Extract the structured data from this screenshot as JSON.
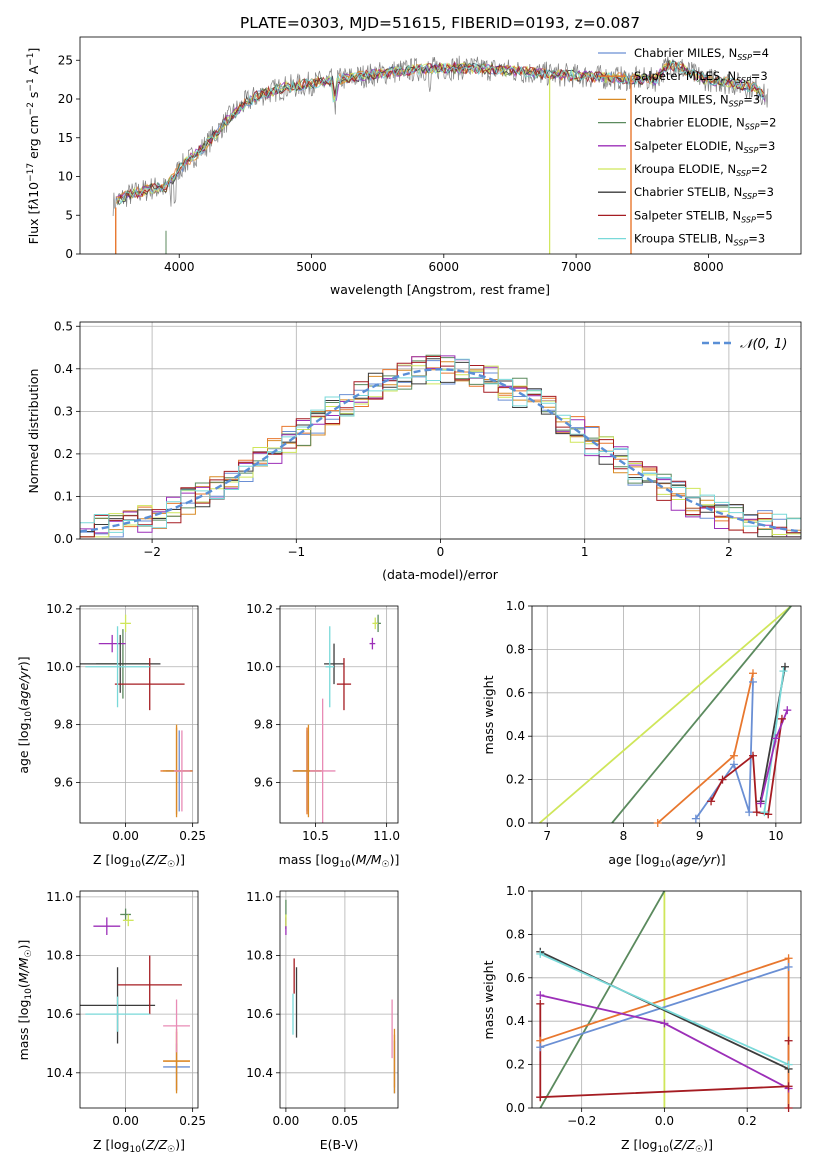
{
  "colors": {
    "chabrier_miles": "#6a8fd4",
    "salpeter_miles": "#e8772e",
    "kroupa_miles": "#d98a25",
    "chabrier_elodie": "#5b8a5e",
    "salpeter_elodie": "#9c2fb8",
    "kroupa_elodie": "#cfe65a",
    "chabrier_stelib": "#3c3c3c",
    "salpeter_stelib": "#a51c22",
    "kroupa_stelib": "#79d9d9",
    "pink": "#e88bb5",
    "grey_data": "#808080",
    "normal_curve": "#5a8fd6"
  },
  "chart_data": [
    {
      "id": "spectrum",
      "type": "line",
      "title": "PLATE=0303, MJD=51615, FIBERID=0193, z=0.087",
      "xlabel": "wavelength [Angstrom, rest frame]",
      "ylabel": "Flux [f_λ 10^-17 erg cm^-2 s^-1 A^-1]",
      "xlim": [
        3250,
        8700
      ],
      "ylim": [
        0,
        28
      ],
      "xticks": [
        "4000",
        "5000",
        "6000",
        "7000",
        "8000"
      ],
      "yticks": [
        "0",
        "5",
        "10",
        "15",
        "20",
        "25"
      ],
      "legend_position": "top-right",
      "legend": [
        "Chabrier MILES, N_SSP=4",
        "Salpeter MILES, N_SSP=3",
        "Kroupa MILES, N_SSP=3",
        "Chabrier ELODIE, N_SSP=2",
        "Salpeter ELODIE, N_SSP=3",
        "Kroupa ELODIE, N_SSP=2",
        "Chabrier STELIB, N_SSP=3",
        "Salpeter STELIB, N_SSP=5",
        "Kroupa STELIB, N_SSP=3"
      ],
      "continuum": {
        "x": [
          3500,
          3600,
          3700,
          3800,
          3900,
          4000,
          4100,
          4200,
          4300,
          4400,
          4500,
          4600,
          4800,
          5000,
          5200,
          5400,
          5600,
          5800,
          6000,
          6200,
          6400,
          6600,
          6800,
          7000,
          7200,
          7400,
          7600,
          7700,
          7800,
          7900,
          8000,
          8200,
          8350,
          8450
        ],
        "y": [
          6.5,
          7.5,
          8,
          8.5,
          8.5,
          11,
          12.5,
          14,
          16,
          18,
          19.5,
          20.5,
          21.5,
          22,
          22.5,
          23,
          23.5,
          23.8,
          24,
          24,
          23.8,
          23.5,
          23.2,
          23,
          22.8,
          22.6,
          22.5,
          24.5,
          24,
          23,
          22.5,
          22,
          21.5,
          20
        ]
      }
    },
    {
      "id": "residuals",
      "type": "line",
      "xlabel": "(data-model)/error",
      "ylabel": "Normed distribution",
      "xlim": [
        -2.5,
        2.5
      ],
      "ylim": [
        0,
        0.51
      ],
      "xticks": [
        "−2",
        "−1",
        "0",
        "1",
        "2"
      ],
      "yticks": [
        "0.0",
        "0.1",
        "0.2",
        "0.3",
        "0.4",
        "0.5"
      ],
      "legend_position": "top-right",
      "legend": [
        "𝒩(0, 1)"
      ],
      "bin_width": 0.1
    },
    {
      "id": "age_vs_Z",
      "type": "scatter",
      "xlabel": "Z [log10(Z/Z☉)]",
      "ylabel": "age [log10(age/yr)]",
      "xlim": [
        -0.17,
        0.27
      ],
      "ylim": [
        9.46,
        10.21
      ],
      "xticks": [
        "0.00",
        "0.25"
      ],
      "yticks": [
        "9.6",
        "9.8",
        "10.0",
        "10.2"
      ],
      "points": [
        {
          "c": "chabrier_miles",
          "x": 0.2,
          "y": 9.64,
          "xe": 0.05,
          "ye": 0.14
        },
        {
          "c": "salpeter_miles",
          "x": 0.19,
          "y": 9.64,
          "xe": 0.06,
          "ye": 0.15
        },
        {
          "c": "kroupa_miles",
          "x": 0.19,
          "y": 9.64,
          "xe": 0.05,
          "ye": 0.16
        },
        {
          "c": "chabrier_elodie",
          "x": -0.01,
          "y": 10.01,
          "xe": 0.1,
          "ye": 0.12
        },
        {
          "c": "salpeter_elodie",
          "x": -0.05,
          "y": 10.08,
          "xe": 0.05,
          "ye": 0.03
        },
        {
          "c": "kroupa_elodie",
          "x": 0.0,
          "y": 10.15,
          "xe": 0.02,
          "ye": 0.03
        },
        {
          "c": "chabrier_stelib",
          "x": -0.02,
          "y": 10.01,
          "xe": 0.15,
          "ye": 0.1
        },
        {
          "c": "salpeter_stelib",
          "x": 0.09,
          "y": 9.94,
          "xe": 0.13,
          "ye": 0.09
        },
        {
          "c": "kroupa_stelib",
          "x": -0.03,
          "y": 10.0,
          "xe": 0.12,
          "ye": 0.14
        },
        {
          "c": "pink",
          "x": 0.21,
          "y": 9.64,
          "xe": 0.03,
          "ye": 0.14
        }
      ]
    },
    {
      "id": "age_vs_mass",
      "type": "scatter",
      "xlabel": "mass [log10(M/M☉)]",
      "xlim": [
        10.25,
        11.08
      ],
      "ylim": [
        9.46,
        10.21
      ],
      "xticks": [
        "10.5",
        "11.0"
      ],
      "yticks": [
        "9.6",
        "9.8",
        "10.0",
        "10.2"
      ],
      "points": [
        {
          "c": "chabrier_miles",
          "x": 10.44,
          "y": 9.64,
          "xe": 0.1,
          "ye": 0.14
        },
        {
          "c": "salpeter_miles",
          "x": 10.44,
          "y": 9.64,
          "xe": 0.1,
          "ye": 0.15
        },
        {
          "c": "kroupa_miles",
          "x": 10.45,
          "y": 9.64,
          "xe": 0.1,
          "ye": 0.16
        },
        {
          "c": "chabrier_elodie",
          "x": 10.94,
          "y": 10.15,
          "xe": 0.02,
          "ye": 0.03
        },
        {
          "c": "salpeter_elodie",
          "x": 10.9,
          "y": 10.08,
          "xe": 0.02,
          "ye": 0.02
        },
        {
          "c": "kroupa_elodie",
          "x": 10.92,
          "y": 10.15,
          "xe": 0.02,
          "ye": 0.02
        },
        {
          "c": "chabrier_stelib",
          "x": 10.63,
          "y": 10.01,
          "xe": 0.07,
          "ye": 0.07
        },
        {
          "c": "salpeter_stelib",
          "x": 10.7,
          "y": 9.94,
          "xe": 0.05,
          "ye": 0.09
        },
        {
          "c": "kroupa_stelib",
          "x": 10.6,
          "y": 10.0,
          "xe": 0.03,
          "ye": 0.14
        },
        {
          "c": "pink",
          "x": 10.55,
          "y": 9.64,
          "xe": 0.09,
          "ye": 0.25
        }
      ]
    },
    {
      "id": "weight_vs_age",
      "type": "line",
      "xlabel": "age  [log10(age/yr)]",
      "ylabel": "mass weight",
      "xlim": [
        6.8,
        10.33
      ],
      "ylim": [
        0,
        1
      ],
      "xticks": [
        "7",
        "8",
        "9",
        "10"
      ],
      "yticks": [
        "0.0",
        "0.2",
        "0.4",
        "0.6",
        "0.8",
        "1.0"
      ],
      "series": [
        {
          "c": "kroupa_elodie",
          "x": [
            6.9,
            10.2
          ],
          "y": [
            0.0,
            1.0
          ],
          "marker": false
        },
        {
          "c": "chabrier_elodie",
          "x": [
            7.85,
            10.2
          ],
          "y": [
            0.0,
            1.0
          ],
          "marker": false
        },
        {
          "c": "salpeter_miles",
          "x": [
            8.45,
            9.45,
            9.7
          ],
          "y": [
            0.0,
            0.31,
            0.69
          ],
          "marker": true
        },
        {
          "c": "chabrier_miles",
          "x": [
            8.95,
            9.45,
            9.65,
            9.7
          ],
          "y": [
            0.02,
            0.27,
            0.05,
            0.65
          ],
          "marker": true
        },
        {
          "c": "salpeter_stelib",
          "x": [
            9.15,
            9.3,
            9.7,
            9.75,
            9.9,
            10.08
          ],
          "y": [
            0.1,
            0.2,
            0.31,
            0.05,
            0.04,
            0.48
          ],
          "marker": true
        },
        {
          "c": "chabrier_stelib",
          "x": [
            9.8,
            10.12
          ],
          "y": [
            0.1,
            0.72
          ],
          "marker": true
        },
        {
          "c": "kroupa_stelib",
          "x": [
            9.85,
            10.1
          ],
          "y": [
            0.05,
            0.7
          ],
          "marker": true
        },
        {
          "c": "salpeter_elodie",
          "x": [
            9.8,
            10.0,
            10.15
          ],
          "y": [
            0.09,
            0.39,
            0.52
          ],
          "marker": true
        }
      ]
    },
    {
      "id": "mass_vs_Z",
      "type": "scatter",
      "xlabel": "Z [log10(Z/Z☉)]",
      "ylabel": "mass [log10(M/M☉)]",
      "xlim": [
        -0.17,
        0.27
      ],
      "ylim": [
        10.28,
        11.02
      ],
      "xticks": [
        "0.00",
        "0.25"
      ],
      "yticks": [
        "10.4",
        "10.6",
        "10.8",
        "11.0"
      ],
      "points": [
        {
          "c": "chabrier_miles",
          "x": 0.19,
          "y": 10.42,
          "xe": 0.05,
          "ye": 0.08
        },
        {
          "c": "salpeter_miles",
          "x": 0.19,
          "y": 10.44,
          "xe": 0.05,
          "ye": 0.1
        },
        {
          "c": "kroupa_miles",
          "x": 0.19,
          "y": 10.44,
          "xe": 0.05,
          "ye": 0.11
        },
        {
          "c": "chabrier_elodie",
          "x": 0.0,
          "y": 10.94,
          "xe": 0.02,
          "ye": 0.02
        },
        {
          "c": "salpeter_elodie",
          "x": -0.07,
          "y": 10.9,
          "xe": 0.05,
          "ye": 0.03
        },
        {
          "c": "kroupa_elodie",
          "x": 0.01,
          "y": 10.92,
          "xe": 0.02,
          "ye": 0.02
        },
        {
          "c": "chabrier_stelib",
          "x": -0.03,
          "y": 10.63,
          "xe": 0.14,
          "ye": 0.13
        },
        {
          "c": "salpeter_stelib",
          "x": 0.09,
          "y": 10.7,
          "xe": 0.12,
          "ye": 0.1
        },
        {
          "c": "kroupa_stelib",
          "x": -0.03,
          "y": 10.6,
          "xe": 0.12,
          "ye": 0.06
        },
        {
          "c": "pink",
          "x": 0.19,
          "y": 10.56,
          "xe": 0.05,
          "ye": 0.09
        }
      ]
    },
    {
      "id": "mass_vs_EBV",
      "type": "scatter",
      "xlabel": "E(B-V)",
      "xlim": [
        -0.005,
        0.095
      ],
      "ylim": [
        10.28,
        11.02
      ],
      "xticks": [
        "0.00",
        "0.05"
      ],
      "yticks": [
        "10.4",
        "10.6",
        "10.8",
        "11.0"
      ],
      "points": [
        {
          "c": "chabrier_miles",
          "x": 0.092,
          "y": 10.42,
          "xe": 0.0,
          "ye": 0.09
        },
        {
          "c": "salpeter_miles",
          "x": 0.092,
          "y": 10.44,
          "xe": 0.0,
          "ye": 0.09
        },
        {
          "c": "kroupa_miles",
          "x": 0.092,
          "y": 10.44,
          "xe": 0.0,
          "ye": 0.11
        },
        {
          "c": "chabrier_elodie",
          "x": 0.0,
          "y": 10.94,
          "xe": 0.0,
          "ye": 0.05
        },
        {
          "c": "salpeter_elodie",
          "x": 0.0,
          "y": 10.9,
          "xe": 0.0,
          "ye": 0.03
        },
        {
          "c": "kroupa_elodie",
          "x": 0.0,
          "y": 10.92,
          "xe": 0.0,
          "ye": 0.02
        },
        {
          "c": "chabrier_stelib",
          "x": 0.009,
          "y": 10.64,
          "xe": 0.0,
          "ye": 0.12
        },
        {
          "c": "salpeter_stelib",
          "x": 0.007,
          "y": 10.73,
          "xe": 0.0,
          "ye": 0.06
        },
        {
          "c": "kroupa_stelib",
          "x": 0.006,
          "y": 10.6,
          "xe": 0.0,
          "ye": 0.07
        },
        {
          "c": "pink",
          "x": 0.09,
          "y": 10.55,
          "xe": 0.0,
          "ye": 0.1
        }
      ]
    },
    {
      "id": "weight_vs_Z",
      "type": "line",
      "xlabel": "Z [log10(Z/Z☉)]",
      "ylabel": "mass weight",
      "xlim": [
        -0.32,
        0.33
      ],
      "ylim": [
        0,
        1
      ],
      "xticks": [
        "−0.2",
        "0.0",
        "0.2"
      ],
      "yticks": [
        "0.0",
        "0.2",
        "0.4",
        "0.6",
        "0.8",
        "1.0"
      ],
      "series": [
        {
          "c": "kroupa_elodie",
          "x": [
            0.0,
            0.0
          ],
          "y": [
            0.0,
            1.0
          ],
          "marker": false
        },
        {
          "c": "chabrier_elodie",
          "x": [
            -0.3,
            0.0
          ],
          "y": [
            0.0,
            1.0
          ],
          "marker": false
        },
        {
          "c": "salpeter_miles",
          "x": [
            -0.3,
            0.3
          ],
          "y": [
            0.31,
            0.69
          ],
          "marker": true
        },
        {
          "c": "chabrier_miles",
          "x": [
            -0.3,
            0.3
          ],
          "y": [
            0.28,
            0.65
          ],
          "marker": true
        },
        {
          "c": "salpeter_elodie",
          "x": [
            -0.3,
            0.0,
            0.3
          ],
          "y": [
            0.52,
            0.39,
            0.09
          ],
          "marker": true
        },
        {
          "c": "chabrier_stelib",
          "x": [
            -0.3,
            0.3
          ],
          "y": [
            0.72,
            0.18
          ],
          "marker": true
        },
        {
          "c": "kroupa_stelib",
          "x": [
            -0.3,
            0.3
          ],
          "y": [
            0.71,
            0.2
          ],
          "marker": true
        },
        {
          "c": "salpeter_stelib",
          "x": [
            -0.3,
            -0.3,
            -0.3,
            0.3,
            0.3,
            0.3
          ],
          "y": [
            0.48,
            0.05,
            0.05,
            0.1,
            0.31,
            0.0
          ],
          "marker": true
        },
        {
          "c": "salpeter_miles",
          "x": [
            0.3,
            0.3
          ],
          "y": [
            0.0,
            0.69
          ],
          "marker": false
        }
      ]
    }
  ]
}
